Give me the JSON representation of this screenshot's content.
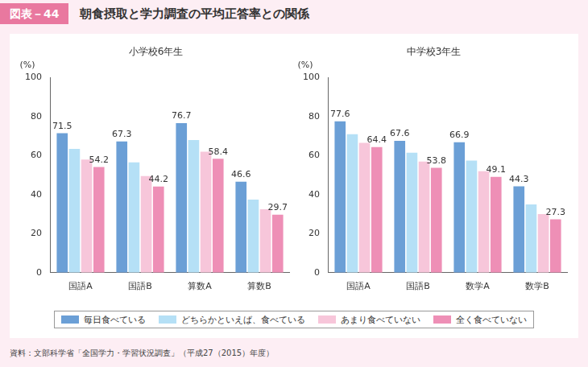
{
  "header": {
    "badge": "図表－44",
    "title": "朝食摂取と学力調査の平均正答率との関係"
  },
  "chart_data": [
    {
      "type": "bar",
      "title": "小学校6年生",
      "y_label": "(%)",
      "categories": [
        "国語A",
        "国語B",
        "算数A",
        "算数B"
      ],
      "series": [
        {
          "name": "毎日食べている",
          "color": "#6b9fd6",
          "values": [
            71.5,
            67.3,
            76.7,
            46.6
          ],
          "data_labels": true
        },
        {
          "name": "どちらかといえば、食べている",
          "color": "#b5e0f6",
          "values": [
            63.5,
            56.5,
            68.0,
            37.5
          ]
        },
        {
          "name": "あまり食べていない",
          "color": "#f7c6da",
          "values": [
            58.0,
            49.5,
            62.0,
            32.5
          ]
        },
        {
          "name": "全く食べていない",
          "color": "#ee8fb6",
          "values": [
            54.2,
            44.2,
            58.4,
            29.7
          ],
          "data_labels": true
        }
      ],
      "ylim": [
        0,
        100
      ],
      "yticks": [
        0,
        20,
        40,
        60,
        80,
        100
      ],
      "grid": false,
      "legend": "bottom"
    },
    {
      "type": "bar",
      "title": "中学校3年生",
      "y_label": "(%)",
      "categories": [
        "国語A",
        "国語B",
        "数学A",
        "数学B"
      ],
      "series": [
        {
          "name": "毎日食べている",
          "color": "#6b9fd6",
          "values": [
            77.6,
            67.6,
            66.9,
            44.3
          ],
          "data_labels": true
        },
        {
          "name": "どちらかといえば、食べている",
          "color": "#b5e0f6",
          "values": [
            71.0,
            61.5,
            57.5,
            35.0
          ]
        },
        {
          "name": "あまり食べていない",
          "color": "#f7c6da",
          "values": [
            66.5,
            57.0,
            52.0,
            30.0
          ]
        },
        {
          "name": "全く食べていない",
          "color": "#ee8fb6",
          "values": [
            64.4,
            53.8,
            49.1,
            27.3
          ],
          "data_labels": true
        }
      ],
      "ylim": [
        0,
        100
      ],
      "yticks": [
        0,
        20,
        40,
        60,
        80,
        100
      ],
      "grid": false,
      "legend": "bottom"
    }
  ],
  "source": "資料：文部科学省「全国学力・学習状況調査」（平成27（2015）年度）"
}
